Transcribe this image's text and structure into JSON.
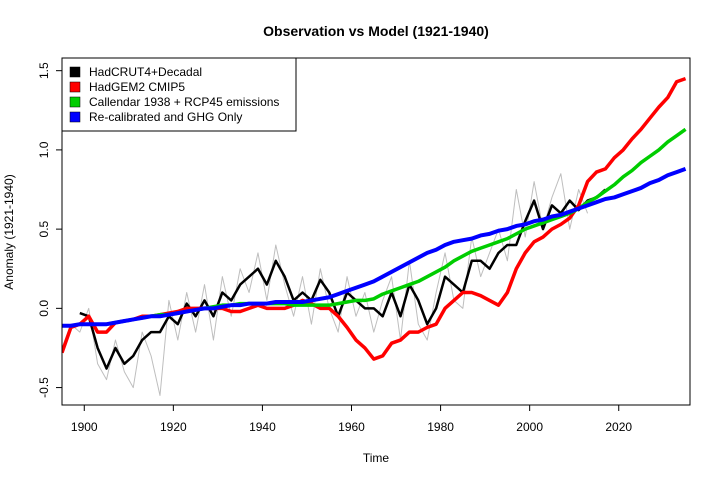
{
  "chart_data": {
    "type": "line",
    "title": "Observation vs Model (1921-1940)",
    "x_label": "Time",
    "y_label": "Anomaly (1921-1940)",
    "xlim": [
      1895,
      2036
    ],
    "ylim": [
      -0.61,
      1.58
    ],
    "xticks": [
      1900,
      1920,
      1940,
      1960,
      1980,
      2000,
      2020
    ],
    "yticks": [
      -0.5,
      {
        "value": 0,
        "label": "0.0"
      },
      0.5,
      {
        "value": 1,
        "label": "1.0"
      },
      1.5
    ],
    "grid": false,
    "legend": "top-left",
    "x": [
      1895,
      1897,
      1899,
      1901,
      1903,
      1905,
      1907,
      1909,
      1911,
      1913,
      1915,
      1917,
      1919,
      1921,
      1923,
      1925,
      1927,
      1929,
      1931,
      1933,
      1935,
      1937,
      1939,
      1941,
      1943,
      1945,
      1947,
      1949,
      1951,
      1953,
      1955,
      1957,
      1959,
      1961,
      1963,
      1965,
      1967,
      1969,
      1971,
      1973,
      1975,
      1977,
      1979,
      1981,
      1983,
      1985,
      1987,
      1989,
      1991,
      1993,
      1995,
      1997,
      1999,
      2001,
      2003,
      2005,
      2007,
      2009,
      2011,
      2013,
      2015,
      2017,
      2019,
      2021,
      2023,
      2025,
      2027,
      2029,
      2031,
      2033,
      2035
    ],
    "series": [
      {
        "color": "#bebebe",
        "values": [
          -0.25,
          -0.1,
          -0.15,
          0.0,
          -0.35,
          -0.45,
          -0.2,
          -0.4,
          -0.5,
          -0.15,
          -0.3,
          -0.55,
          0.05,
          -0.2,
          0.1,
          -0.15,
          0.15,
          -0.2,
          0.2,
          -0.05,
          0.25,
          0.1,
          0.35,
          0.05,
          0.4,
          0.15,
          -0.05,
          0.2,
          -0.1,
          0.25,
          0.0,
          -0.15,
          0.2,
          -0.05,
          0.1,
          -0.15,
          0.05,
          0.2,
          -0.2,
          0.3,
          -0.1,
          -0.2,
          0.1,
          0.35,
          0.05,
          0.0,
          0.45,
          0.2,
          0.35,
          0.5,
          0.3,
          0.75,
          0.45,
          0.8,
          0.5,
          0.7,
          0.85,
          0.5,
          0.75,
          0.6,
          null,
          null,
          null,
          null,
          null,
          null,
          null,
          null,
          null,
          null,
          null
        ]
      },
      {
        "name": "HadCRUT4+Decadal",
        "color": "#000000",
        "values": [
          null,
          null,
          -0.03,
          -0.05,
          -0.25,
          -0.38,
          -0.25,
          -0.35,
          -0.3,
          -0.2,
          -0.15,
          -0.15,
          -0.05,
          -0.1,
          0.03,
          -0.05,
          0.05,
          -0.05,
          0.1,
          0.05,
          0.15,
          0.2,
          0.25,
          0.15,
          0.3,
          0.2,
          0.05,
          0.1,
          0.05,
          0.18,
          0.1,
          -0.05,
          0.1,
          0.05,
          0.0,
          0.0,
          -0.05,
          0.1,
          -0.05,
          0.15,
          0.05,
          -0.1,
          0.0,
          0.2,
          0.15,
          0.1,
          0.3,
          0.3,
          0.25,
          0.35,
          0.4,
          0.4,
          0.55,
          0.68,
          0.5,
          0.65,
          0.6,
          0.68,
          0.62,
          0.68,
          0.7,
          0.75,
          null,
          null,
          null,
          null,
          null,
          null,
          null,
          null,
          null
        ]
      },
      {
        "name": "HadGEM2 CMIP5",
        "color": "#ff0000",
        "values": [
          -0.28,
          -0.12,
          -0.1,
          -0.05,
          -0.15,
          -0.15,
          -0.09,
          -0.08,
          -0.07,
          -0.05,
          -0.05,
          -0.04,
          -0.03,
          -0.02,
          0.0,
          0.0,
          0.0,
          0.0,
          0.0,
          -0.02,
          -0.02,
          0.0,
          0.02,
          0.0,
          0.0,
          0.0,
          0.02,
          0.05,
          0.03,
          0.0,
          0.0,
          -0.05,
          -0.12,
          -0.2,
          -0.25,
          -0.32,
          -0.3,
          -0.22,
          -0.2,
          -0.15,
          -0.15,
          -0.12,
          -0.1,
          0.0,
          0.05,
          0.1,
          0.1,
          0.08,
          0.05,
          0.02,
          0.1,
          0.25,
          0.35,
          0.42,
          0.45,
          0.5,
          0.53,
          0.57,
          0.65,
          0.8,
          0.86,
          0.88,
          0.95,
          1.0,
          1.07,
          1.13,
          1.2,
          1.27,
          1.33,
          1.43,
          1.45
        ]
      },
      {
        "name": "Callendar 1938 + RCP45 emissions",
        "color": "#00cd00",
        "values": [
          null,
          null,
          null,
          null,
          null,
          -0.1,
          -0.09,
          -0.08,
          -0.07,
          -0.06,
          -0.05,
          -0.04,
          -0.04,
          -0.03,
          -0.02,
          -0.01,
          0.0,
          0.01,
          0.02,
          0.02,
          0.03,
          0.03,
          0.03,
          0.03,
          0.03,
          0.03,
          0.02,
          0.02,
          0.02,
          0.02,
          0.02,
          0.03,
          0.04,
          0.05,
          0.05,
          0.06,
          0.09,
          0.11,
          0.13,
          0.15,
          0.17,
          0.2,
          0.23,
          0.26,
          0.3,
          0.33,
          0.36,
          0.38,
          0.4,
          0.42,
          0.44,
          0.47,
          0.5,
          0.52,
          0.54,
          0.56,
          0.58,
          0.6,
          0.63,
          0.67,
          0.7,
          0.74,
          0.78,
          0.83,
          0.87,
          0.92,
          0.96,
          1.0,
          1.05,
          1.09,
          1.13
        ]
      },
      {
        "name": "Re-calibrated and GHG Only",
        "color": "#0000ff",
        "values": [
          -0.11,
          -0.11,
          -0.1,
          -0.1,
          -0.1,
          -0.1,
          -0.09,
          -0.08,
          -0.07,
          -0.06,
          -0.05,
          -0.05,
          -0.04,
          -0.03,
          -0.02,
          -0.01,
          0.0,
          0.0,
          0.01,
          0.02,
          0.02,
          0.03,
          0.03,
          0.03,
          0.04,
          0.04,
          0.04,
          0.04,
          0.05,
          0.06,
          0.07,
          0.09,
          0.11,
          0.13,
          0.15,
          0.17,
          0.2,
          0.23,
          0.26,
          0.29,
          0.32,
          0.35,
          0.37,
          0.4,
          0.42,
          0.43,
          0.44,
          0.46,
          0.47,
          0.49,
          0.5,
          0.52,
          0.53,
          0.55,
          0.56,
          0.58,
          0.59,
          0.61,
          0.63,
          0.65,
          0.67,
          0.69,
          0.7,
          0.72,
          0.74,
          0.76,
          0.79,
          0.81,
          0.84,
          0.86,
          0.88
        ]
      }
    ]
  }
}
